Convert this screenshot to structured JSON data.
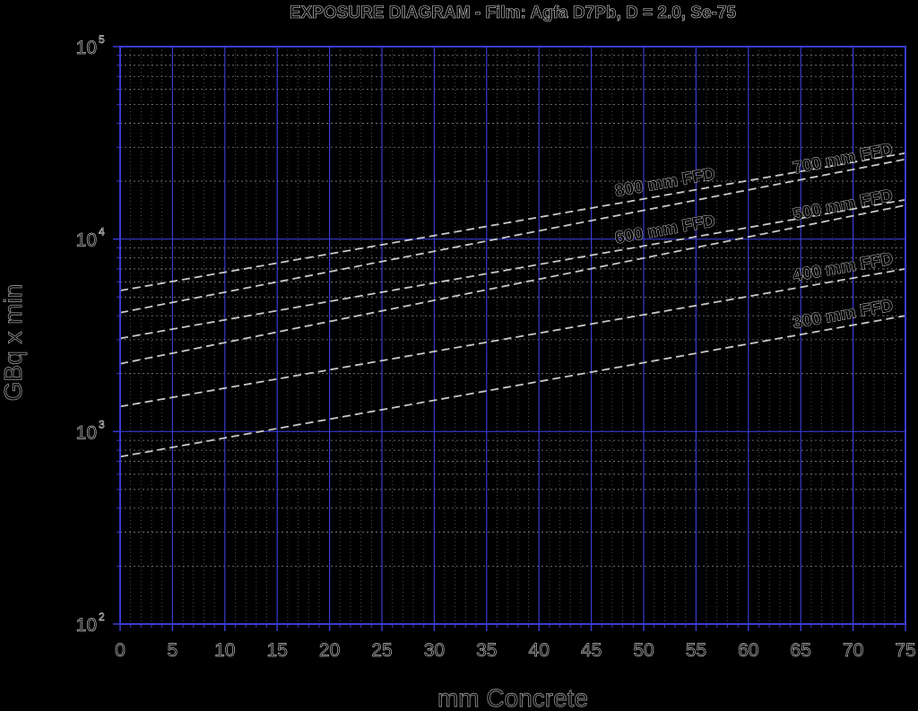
{
  "chart_data": {
    "type": "line",
    "title": "EXPOSURE DIAGRAM - Film: Agfa D7Pb, D = 2.0, Se-75",
    "xlabel": "mm Concrete",
    "ylabel": "GBq x min",
    "xlim": [
      0,
      75
    ],
    "ylim": [
      100,
      100000
    ],
    "yscale": "log",
    "x_ticks": [
      "0",
      "5",
      "10",
      "15",
      "20",
      "25",
      "30",
      "35",
      "40",
      "45",
      "50",
      "55",
      "60",
      "65",
      "70",
      "75"
    ],
    "y_ticks": [
      {
        "value": 100,
        "base": "10",
        "exp": "2"
      },
      {
        "value": 1000,
        "base": "10",
        "exp": "3"
      },
      {
        "value": 10000,
        "base": "10",
        "exp": "4"
      },
      {
        "value": 100000,
        "base": "10",
        "exp": "5"
      }
    ],
    "grid": true,
    "legend": "none",
    "colors": {
      "background": "#000000",
      "major_grid": "#3a3ad0",
      "minor_grid": "#b0b0b0",
      "curve": "#c8c8c8"
    },
    "series": [
      {
        "name": "800 mm FFD",
        "x": [
          0,
          75
        ],
        "y": [
          5400,
          28000
        ]
      },
      {
        "name": "700 mm FFD",
        "x": [
          0,
          75
        ],
        "y": [
          4150,
          26000
        ]
      },
      {
        "name": "600 mm FFD",
        "x": [
          0,
          75
        ],
        "y": [
          3050,
          16000
        ]
      },
      {
        "name": "500 mm FFD",
        "x": [
          0,
          75
        ],
        "y": [
          2250,
          15000
        ]
      },
      {
        "name": "400 mm FFD",
        "x": [
          0,
          75
        ],
        "y": [
          1350,
          7000
        ]
      },
      {
        "name": "300 mm FFD",
        "x": [
          0,
          75
        ],
        "y": [
          740,
          4000
        ]
      }
    ]
  }
}
